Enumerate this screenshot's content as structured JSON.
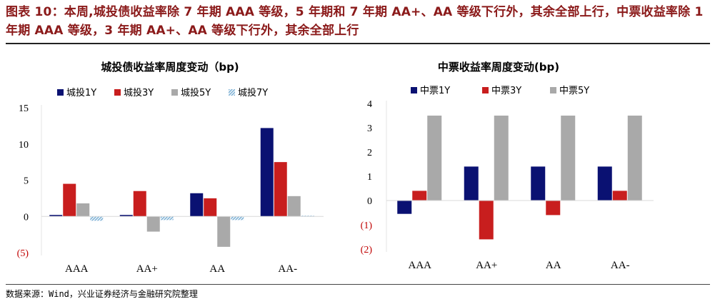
{
  "figure": {
    "title": "图表 10：本周,城投债收益率除 7 年期 AAA 等级，5 年期和 7 年期 AA+、AA 等级下行外，其余全部上行，中票收益率除 1 年期 AAA 等级，3 年期 AA+、AA 等级下行外，其余全部上行",
    "source": "数据来源：Wind，兴业证券经济与金融研究院整理"
  },
  "colors": {
    "navy": "#0A1172",
    "red": "#C81E1E",
    "gray": "#A9A9A9",
    "hatch": "#7FB2D6",
    "negative_tick": "#C00000"
  },
  "chart_data": [
    {
      "type": "bar",
      "title": "城投债收益率周度变动（bp)",
      "categories": [
        "AAA",
        "AA+",
        "AA",
        "AA-"
      ],
      "ylim": [
        -5,
        15
      ],
      "yticks": [
        15,
        10,
        5,
        0,
        -5
      ],
      "ytick_labels": [
        "15",
        "10",
        "5",
        "0",
        "(5)"
      ],
      "xlabel": "",
      "ylabel": "",
      "series": [
        {
          "name": "城投1Y",
          "color": "#0A1172",
          "values": [
            0.2,
            0.2,
            3.2,
            12.2
          ]
        },
        {
          "name": "城投3Y",
          "color": "#C81E1E",
          "values": [
            4.5,
            3.5,
            2.5,
            7.5
          ]
        },
        {
          "name": "城投5Y",
          "color": "#A9A9A9",
          "values": [
            1.8,
            -2.1,
            -4.2,
            2.8
          ]
        },
        {
          "name": "城投7Y",
          "color": "#7FB2D6",
          "pattern": "hatch",
          "values": [
            -0.6,
            -0.5,
            -0.5,
            0.1
          ]
        }
      ]
    },
    {
      "type": "bar",
      "title": "中票收益率周度变动(bp)",
      "categories": [
        "AAA",
        "AA+",
        "AA",
        "AA-"
      ],
      "ylim": [
        -2,
        4
      ],
      "yticks": [
        4,
        3,
        2,
        1,
        0,
        -1,
        -2
      ],
      "ytick_labels": [
        "4",
        "3",
        "2",
        "1",
        "0",
        "(1)",
        "(2)"
      ],
      "xlabel": "",
      "ylabel": "",
      "series": [
        {
          "name": "中票1Y",
          "color": "#0A1172",
          "values": [
            -0.55,
            1.4,
            1.4,
            1.4
          ]
        },
        {
          "name": "中票3Y",
          "color": "#C81E1E",
          "values": [
            0.4,
            -1.6,
            -0.6,
            0.4
          ]
        },
        {
          "name": "中票5Y",
          "color": "#A9A9A9",
          "values": [
            3.5,
            3.5,
            3.5,
            3.5
          ]
        }
      ]
    }
  ]
}
